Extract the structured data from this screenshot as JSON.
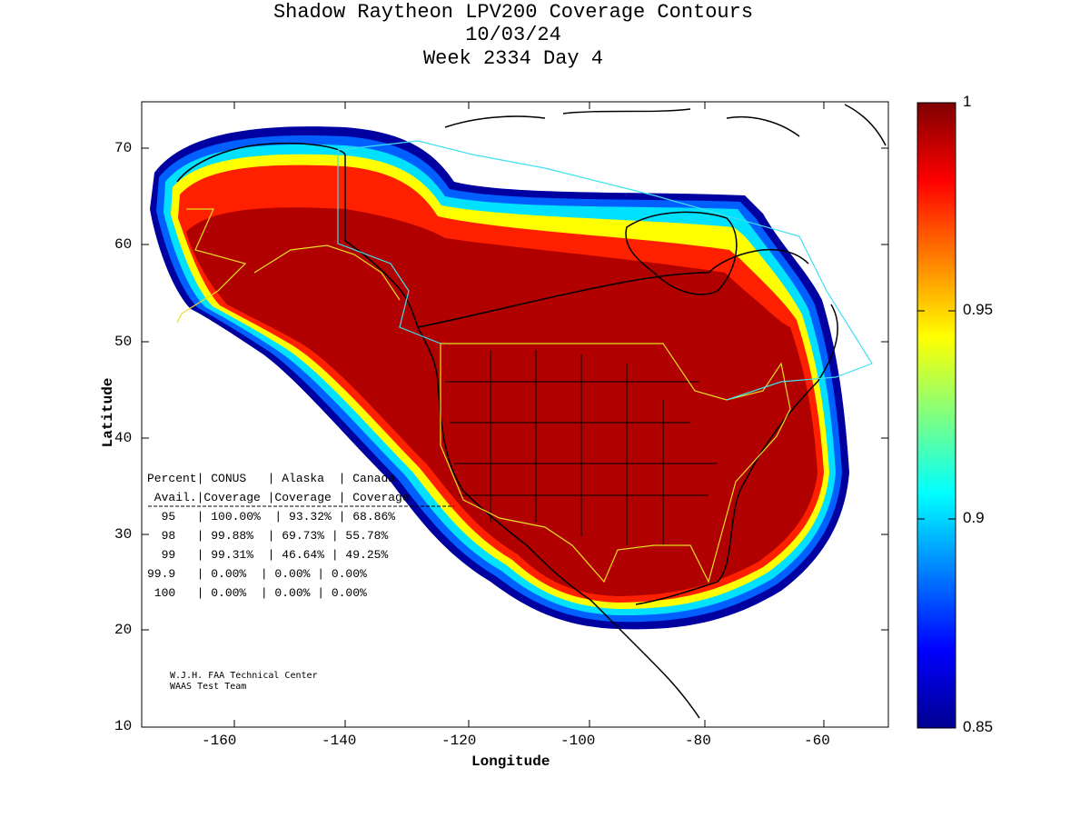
{
  "title": {
    "line1": "Shadow Raytheon LPV200 Coverage Contours",
    "line2": "10/03/24",
    "line3": "Week 2334 Day 4"
  },
  "axes": {
    "xlabel": "Longitude",
    "ylabel": "Latitude",
    "x_ticks": [
      "-160",
      "-140",
      "-120",
      "-100",
      "-80",
      "-60"
    ],
    "y_ticks": [
      "70",
      "60",
      "50",
      "40",
      "30",
      "20",
      "10"
    ],
    "xlim": [
      -175,
      -50
    ],
    "ylim": [
      10,
      75
    ]
  },
  "colorbar": {
    "ticks": [
      "1",
      "0.95",
      "0.9",
      "0.85"
    ],
    "range": [
      0.85,
      1.0
    ],
    "colormap": "jet"
  },
  "stats_table": {
    "header1": "Percent| CONUS   | Alaska  | Canada",
    "header2": " Avail.|Coverage |Coverage | Coverage",
    "rows": [
      "  95   | 100.00%  | 93.32% | 68.86%",
      "  98   | 99.88%  | 69.73% | 55.78%",
      "  99   | 99.31%  | 46.64% | 49.25%",
      "99.9   | 0.00%  | 0.00% | 0.00%",
      " 100   | 0.00%  | 0.00% | 0.00%"
    ]
  },
  "credit": {
    "line1": "W.J.H. FAA Technical Center",
    "line2": "WAAS Test Team"
  },
  "colors": {
    "full_coverage": "#b00000",
    "border_yellow": "#e8e020",
    "border_cyan": "#40e0f0"
  }
}
